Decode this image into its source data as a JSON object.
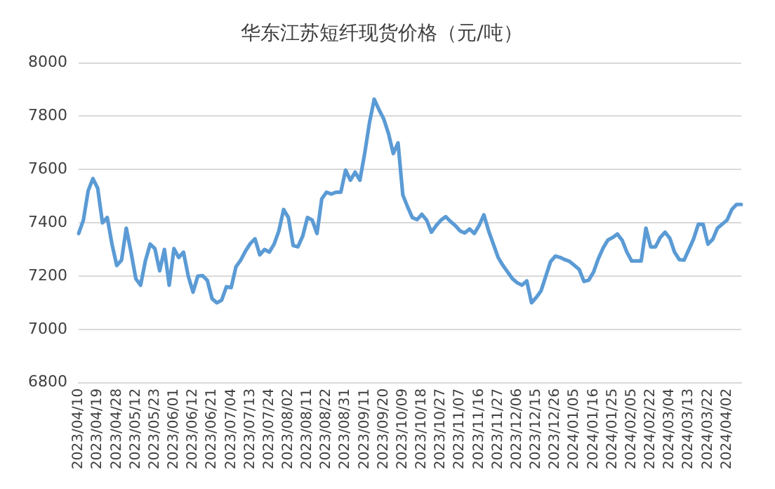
{
  "chart_data": {
    "type": "line",
    "title": "华东江苏短纤现货价格（元/吨）",
    "categories": [
      "2023/04/10",
      null,
      null,
      null,
      "2023/04/19",
      null,
      null,
      null,
      "2023/04/28",
      null,
      null,
      null,
      "2023/05/12",
      null,
      null,
      null,
      "2023/05/23",
      null,
      null,
      null,
      "2023/06/01",
      null,
      null,
      null,
      "2023/06/12",
      null,
      null,
      null,
      "2023/06/21",
      null,
      null,
      null,
      "2023/07/04",
      null,
      null,
      null,
      "2023/07/13",
      null,
      null,
      null,
      "2023/07/24",
      null,
      null,
      null,
      "2023/08/02",
      null,
      null,
      null,
      "2023/08/11",
      null,
      null,
      null,
      "2023/08/22",
      null,
      null,
      null,
      "2023/08/31",
      null,
      null,
      null,
      "2023/09/11",
      null,
      null,
      null,
      "2023/09/20",
      null,
      null,
      null,
      "2023/10/09",
      null,
      null,
      null,
      "2023/10/18",
      null,
      null,
      null,
      "2023/10/27",
      null,
      null,
      null,
      "2023/11/07",
      null,
      null,
      null,
      "2023/11/16",
      null,
      null,
      null,
      "2023/11/27",
      null,
      null,
      null,
      "2023/12/06",
      null,
      null,
      null,
      "2023/12/15",
      null,
      null,
      null,
      "2023/12/26",
      null,
      null,
      null,
      "2024/01/05",
      null,
      null,
      null,
      "2024/01/16",
      null,
      null,
      null,
      "2024/01/25",
      null,
      null,
      null,
      "2024/02/05",
      null,
      null,
      null,
      "2024/02/22",
      null,
      null,
      null,
      "2024/03/04",
      null,
      null,
      null,
      "2024/03/13",
      null,
      null,
      null,
      "2024/03/22",
      null,
      null,
      null,
      "2024/04/02",
      null,
      null,
      null
    ],
    "series": [
      {
        "color": "#5b9bd5",
        "values": [
          7360,
          7410,
          7520,
          7566,
          7530,
          7400,
          7420,
          7320,
          7240,
          7260,
          7380,
          7290,
          7190,
          7166,
          7257,
          7320,
          7303,
          7220,
          7300,
          7166,
          7303,
          7270,
          7290,
          7200,
          7140,
          7200,
          7202,
          7184,
          7115,
          7100,
          7110,
          7160,
          7157,
          7235,
          7260,
          7294,
          7322,
          7340,
          7280,
          7300,
          7290,
          7320,
          7370,
          7450,
          7420,
          7315,
          7310,
          7350,
          7420,
          7410,
          7360,
          7490,
          7515,
          7508,
          7515,
          7515,
          7598,
          7560,
          7590,
          7560,
          7660,
          7775,
          7864,
          7825,
          7790,
          7735,
          7660,
          7700,
          7505,
          7460,
          7420,
          7412,
          7432,
          7410,
          7365,
          7390,
          7410,
          7423,
          7405,
          7390,
          7370,
          7362,
          7377,
          7360,
          7390,
          7430,
          7370,
          7320,
          7270,
          7240,
          7215,
          7190,
          7175,
          7166,
          7182,
          7100,
          7120,
          7145,
          7200,
          7255,
          7275,
          7270,
          7262,
          7255,
          7240,
          7225,
          7180,
          7185,
          7215,
          7265,
          7305,
          7335,
          7345,
          7358,
          7335,
          7290,
          7257,
          7257,
          7257,
          7380,
          7310,
          7310,
          7345,
          7365,
          7342,
          7290,
          7262,
          7260,
          7300,
          7340,
          7395,
          7394,
          7320,
          7338,
          7380,
          7395,
          7410,
          7450,
          7469,
          7469
        ]
      }
    ],
    "ylim": [
      6800,
      8000
    ],
    "yticks": [
      6800,
      7000,
      7200,
      7400,
      7600,
      7800,
      8000
    ],
    "grid": "y",
    "legend": false,
    "marker": "none",
    "line_style": "solid"
  }
}
